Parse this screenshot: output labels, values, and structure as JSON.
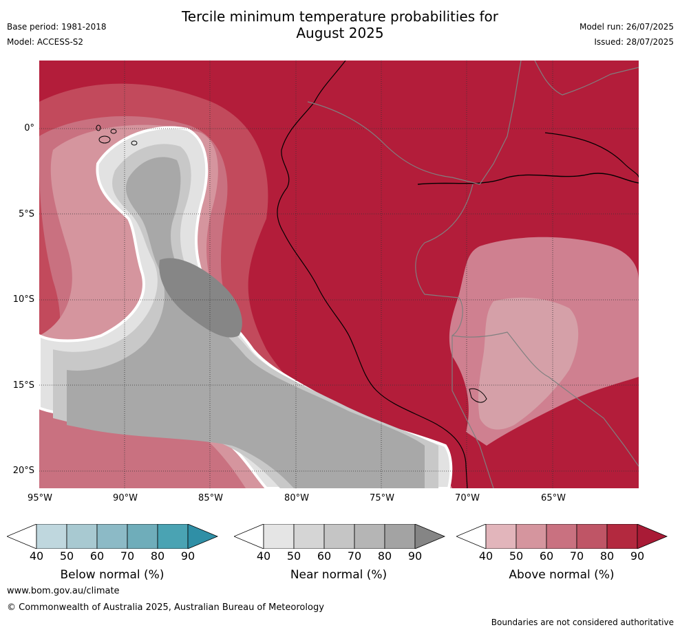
{
  "header": {
    "title_line1": "Tercile minimum temperature probabilities for",
    "title_line2": "August 2025",
    "base_period": "Base period: 1981-2018",
    "model": "Model: ACCESS-S2",
    "model_run": "Model run: 26/07/2025",
    "issued": "Issued: 28/07/2025"
  },
  "map": {
    "region": "Eastern Pacific / Western South America",
    "lon_range": [
      -95,
      -60
    ],
    "lat_range": [
      -21,
      4
    ],
    "x_ticks": [
      "95°W",
      "90°W",
      "85°W",
      "80°W",
      "75°W",
      "70°W",
      "65°W"
    ],
    "y_ticks": [
      "0°",
      "5°S",
      "10°S",
      "15°S",
      "20°S"
    ],
    "grid": true
  },
  "colorbars": [
    {
      "name": "below",
      "label": "Below normal (%)",
      "ticks": [
        "40",
        "50",
        "60",
        "70",
        "80",
        "90"
      ],
      "colors": [
        "#ffffff",
        "#bfd7de",
        "#a8c9d1",
        "#8cbac6",
        "#6fadba",
        "#4aa3b3",
        "#2f8fa6"
      ]
    },
    {
      "name": "near",
      "label": "Near normal (%)",
      "ticks": [
        "40",
        "50",
        "60",
        "70",
        "80",
        "90"
      ],
      "colors": [
        "#ffffff",
        "#e5e5e5",
        "#d5d5d5",
        "#c5c5c5",
        "#b5b5b5",
        "#a3a3a3",
        "#858585"
      ]
    },
    {
      "name": "above",
      "label": "Above normal (%)",
      "ticks": [
        "40",
        "50",
        "60",
        "70",
        "80",
        "90"
      ],
      "colors": [
        "#ffffff",
        "#e2b5bb",
        "#d5959e",
        "#c97180",
        "#bf5566",
        "#b3293f",
        "#a91b36"
      ]
    }
  ],
  "footer": {
    "website": "www.bom.gov.au/climate",
    "copyright": "© Commonwealth of Australia 2025, Australian Bureau of Meteorology",
    "disclaimer": "Boundaries are not considered authoritative"
  }
}
